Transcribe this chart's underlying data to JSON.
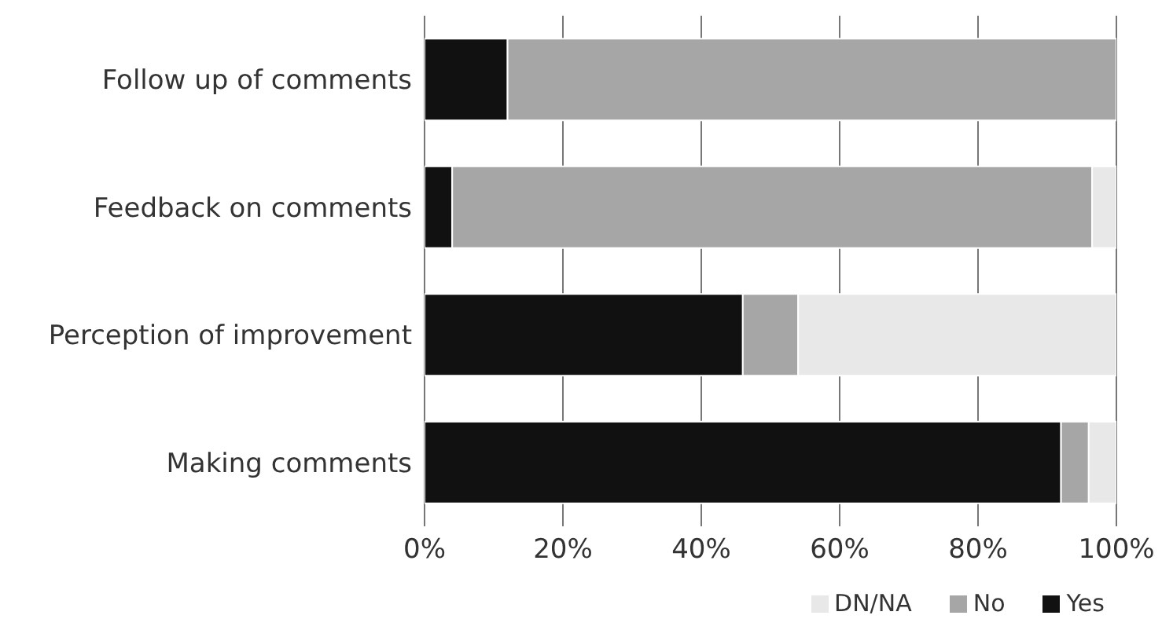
{
  "chart_data": {
    "type": "bar",
    "orientation": "horizontal",
    "stacked": true,
    "categories": [
      "Follow up of comments",
      "Feedback on comments",
      "Perception of improvement",
      "Making comments"
    ],
    "series": [
      {
        "name": "Yes",
        "color": "#111111",
        "values": [
          12,
          4,
          46,
          92
        ]
      },
      {
        "name": "No",
        "color": "#a6a6a6",
        "values": [
          88,
          92.5,
          8,
          4
        ]
      },
      {
        "name": "DN/NA",
        "color": "#e8e8e8",
        "values": [
          0,
          3.5,
          46,
          4
        ]
      }
    ],
    "xlim": [
      0,
      100
    ],
    "xticks": [
      {
        "value": 0,
        "label": "0%"
      },
      {
        "value": 20,
        "label": "20%"
      },
      {
        "value": 40,
        "label": "40%"
      },
      {
        "value": 60,
        "label": "60%"
      },
      {
        "value": 80,
        "label": "80%"
      },
      {
        "value": 100,
        "label": "100%"
      }
    ],
    "grid": "x",
    "legend": "bottom"
  }
}
